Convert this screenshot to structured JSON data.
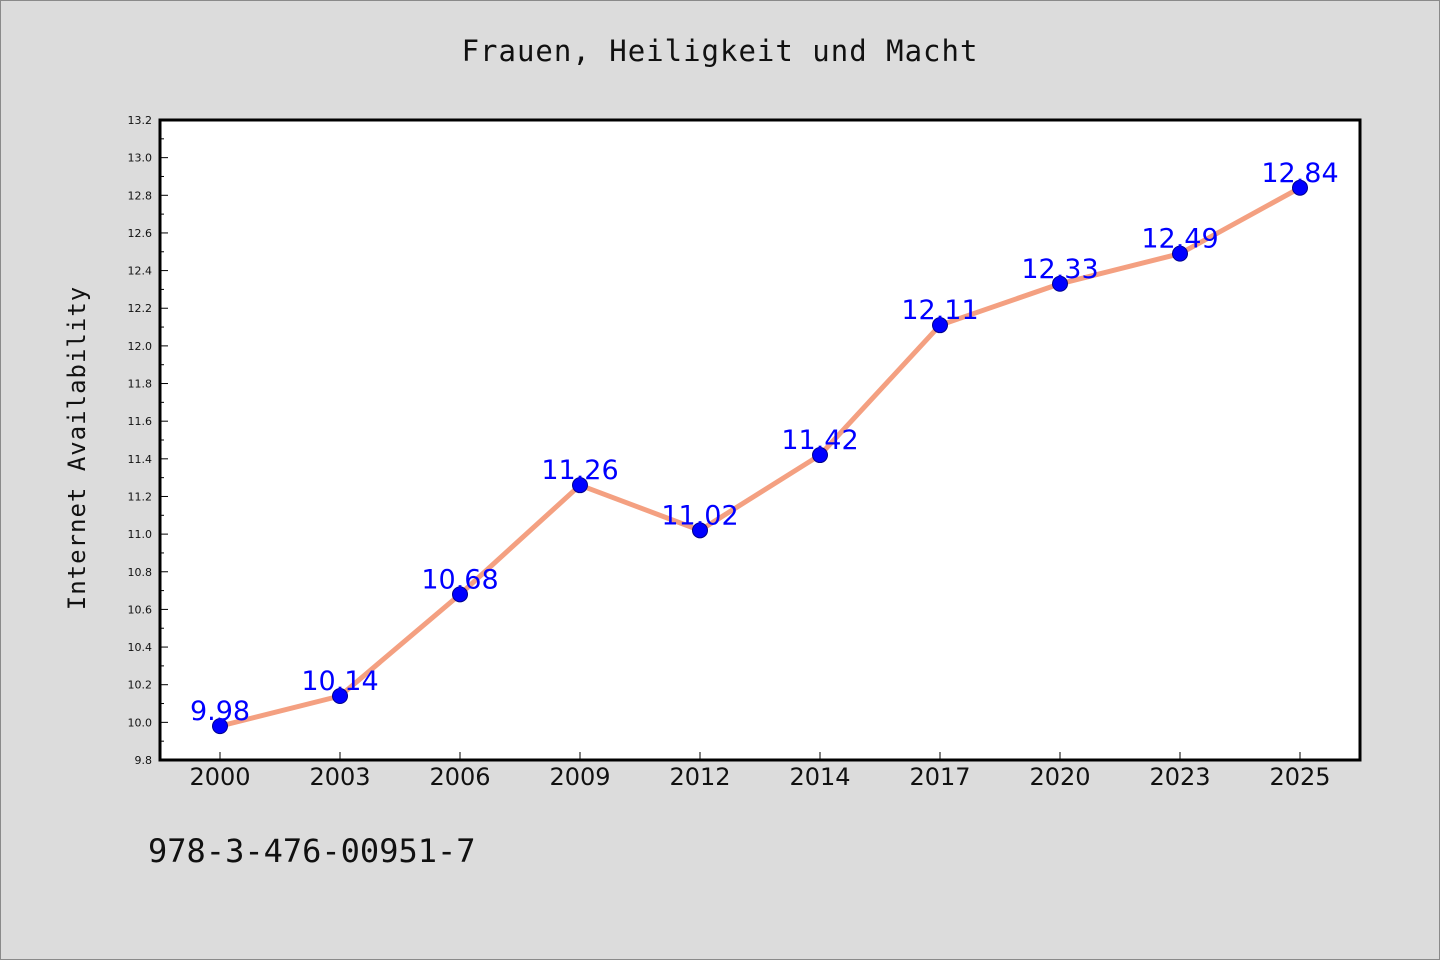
{
  "chart_data": {
    "type": "line",
    "title": "Frauen, Heiligkeit und Macht",
    "xlabel": "",
    "ylabel": "Internet Availability",
    "categories": [
      "2000",
      "2003",
      "2006",
      "2009",
      "2012",
      "2014",
      "2017",
      "2020",
      "2023",
      "2025"
    ],
    "series": [
      {
        "values": [
          9.98,
          10.14,
          10.68,
          11.26,
          11.02,
          11.42,
          12.11,
          12.33,
          12.49,
          12.84
        ],
        "labels": [
          "9.98",
          "10.14",
          "10.68",
          "11.26",
          "11.02",
          "11.42",
          "12.11",
          "12.33",
          "12.49",
          "12.84"
        ],
        "line_color": "#f4a081",
        "marker_color": "#0000ff"
      }
    ],
    "ylim": [
      9.8,
      13.2
    ],
    "yticks": [
      "9.8",
      "10.0",
      "10.2",
      "10.4",
      "10.6",
      "10.8",
      "11.0",
      "11.2",
      "11.4",
      "11.6",
      "11.8",
      "12.0",
      "12.2",
      "12.4",
      "12.6",
      "12.8",
      "13.0",
      "13.2"
    ],
    "grid": false,
    "legend": "none"
  },
  "footer": {
    "code": "978-3-476-00951-7"
  },
  "colors": {
    "background": "#dcdcdc",
    "plot_background": "#ffffff",
    "label_color": "#0000ff"
  }
}
